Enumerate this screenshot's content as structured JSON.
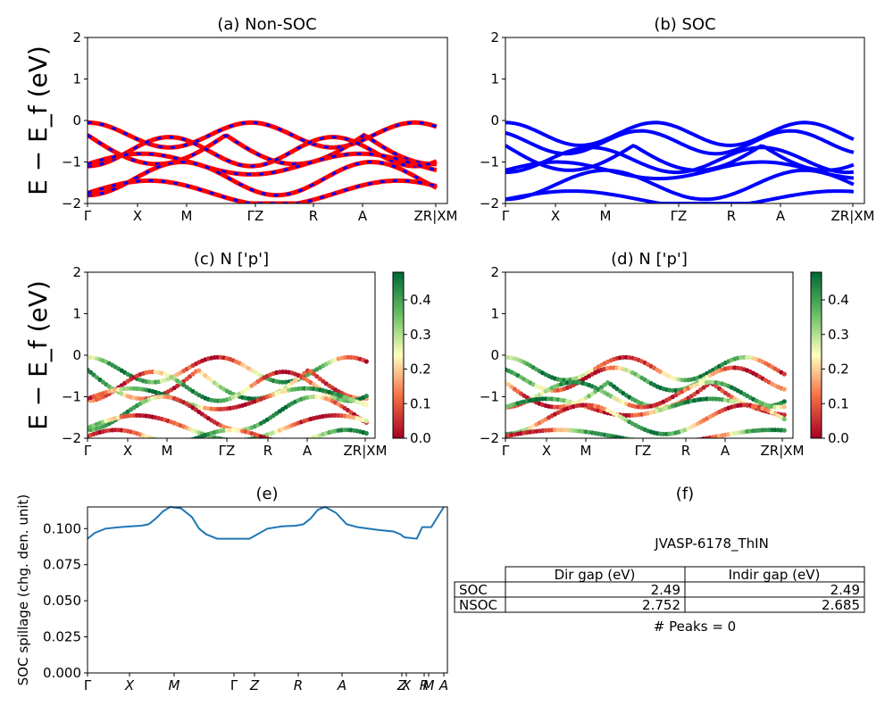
{
  "chart_data": [
    {
      "id": "a",
      "type": "line",
      "title": "(a) Non-SOC",
      "ylabel": "E − E_f (eV)",
      "ylim": [
        -2,
        2
      ],
      "yticks": [
        "2",
        "1",
        "0",
        "−1",
        "−2"
      ],
      "xticks": [
        "Γ",
        "X",
        "M",
        "ΓZ",
        "R",
        "A",
        "ZR|XM"
      ],
      "series_colors": [
        "#ff0000",
        "#0000ff"
      ]
    },
    {
      "id": "b",
      "type": "line",
      "title": "(b) SOC",
      "ylim": [
        -2,
        2
      ],
      "yticks": [
        "2",
        "1",
        "0",
        "−1",
        "−2"
      ],
      "xticks": [
        "Γ",
        "X",
        "M",
        "ΓZ",
        "R",
        "A",
        "ZR|XM"
      ],
      "series_colors": [
        "#0000ff"
      ]
    },
    {
      "id": "c",
      "type": "scatter",
      "title": "(c)  N ['p']",
      "ylabel": "E − E_f (eV)",
      "ylim": [
        -2,
        2
      ],
      "yticks": [
        "2",
        "1",
        "0",
        "−1",
        "−2"
      ],
      "xticks": [
        "Γ",
        "X",
        "M",
        "ΓZ",
        "R",
        "A",
        "ZR|XM"
      ],
      "colorbar": {
        "min": 0.0,
        "max": 0.48,
        "ticks": [
          "0.0",
          "0.1",
          "0.2",
          "0.3",
          "0.4"
        ],
        "colormap": "RdYlGn"
      }
    },
    {
      "id": "d",
      "type": "scatter",
      "title": "(d) N ['p']",
      "ylim": [
        -2,
        2
      ],
      "yticks": [
        "2",
        "1",
        "0",
        "−1",
        "−2"
      ],
      "xticks": [
        "Γ",
        "X",
        "M",
        "ΓZ",
        "R",
        "A",
        "ZR|XM"
      ],
      "colorbar": {
        "min": 0.0,
        "max": 0.48,
        "ticks": [
          "0.0",
          "0.1",
          "0.2",
          "0.3",
          "0.4"
        ],
        "colormap": "RdYlGn"
      }
    },
    {
      "id": "e",
      "type": "line",
      "title": "(e)",
      "ylabel": "SOC spillage (chg. den. unit)",
      "ylim": [
        0.0,
        0.115
      ],
      "yticks": [
        "0.100",
        "0.075",
        "0.050",
        "0.025",
        "0.000"
      ],
      "xticks": [
        "Γ",
        "X",
        "M",
        "Γ",
        "Z",
        "R",
        "A",
        "Z",
        "X",
        "R",
        "M",
        "A"
      ],
      "x": [
        0,
        0.02,
        0.05,
        0.09,
        0.12,
        0.15,
        0.17,
        0.19,
        0.21,
        0.23,
        0.26,
        0.29,
        0.31,
        0.33,
        0.36,
        0.4,
        0.42,
        0.45,
        0.5,
        0.54,
        0.58,
        0.6,
        0.62,
        0.64,
        0.66,
        0.69,
        0.72,
        0.75,
        0.78,
        0.81,
        0.85,
        0.87,
        0.88,
        0.915,
        0.93,
        0.945,
        0.948,
        0.955,
        0.99
      ],
      "y": [
        0.093,
        0.097,
        0.1,
        0.101,
        0.1015,
        0.102,
        0.103,
        0.107,
        0.112,
        0.115,
        0.114,
        0.108,
        0.1,
        0.096,
        0.093,
        0.093,
        0.093,
        0.093,
        0.1,
        0.1015,
        0.102,
        0.103,
        0.107,
        0.113,
        0.115,
        0.111,
        0.103,
        0.101,
        0.1,
        0.099,
        0.098,
        0.096,
        0.094,
        0.093,
        0.101,
        0.101,
        0.101,
        0.101,
        0.115
      ],
      "color": "#1f77b4"
    },
    {
      "id": "f",
      "type": "table",
      "title": "(f)",
      "subtitle": "JVASP-6178_ThIN",
      "columns": [
        "Dir gap (eV)",
        "Indir gap (eV)"
      ],
      "rows": [
        {
          "label": "SOC",
          "values": [
            "2.49",
            "2.49"
          ]
        },
        {
          "label": "NSOC",
          "values": [
            "2.752",
            "2.685"
          ]
        }
      ],
      "footer": "# Peaks = 0"
    }
  ]
}
